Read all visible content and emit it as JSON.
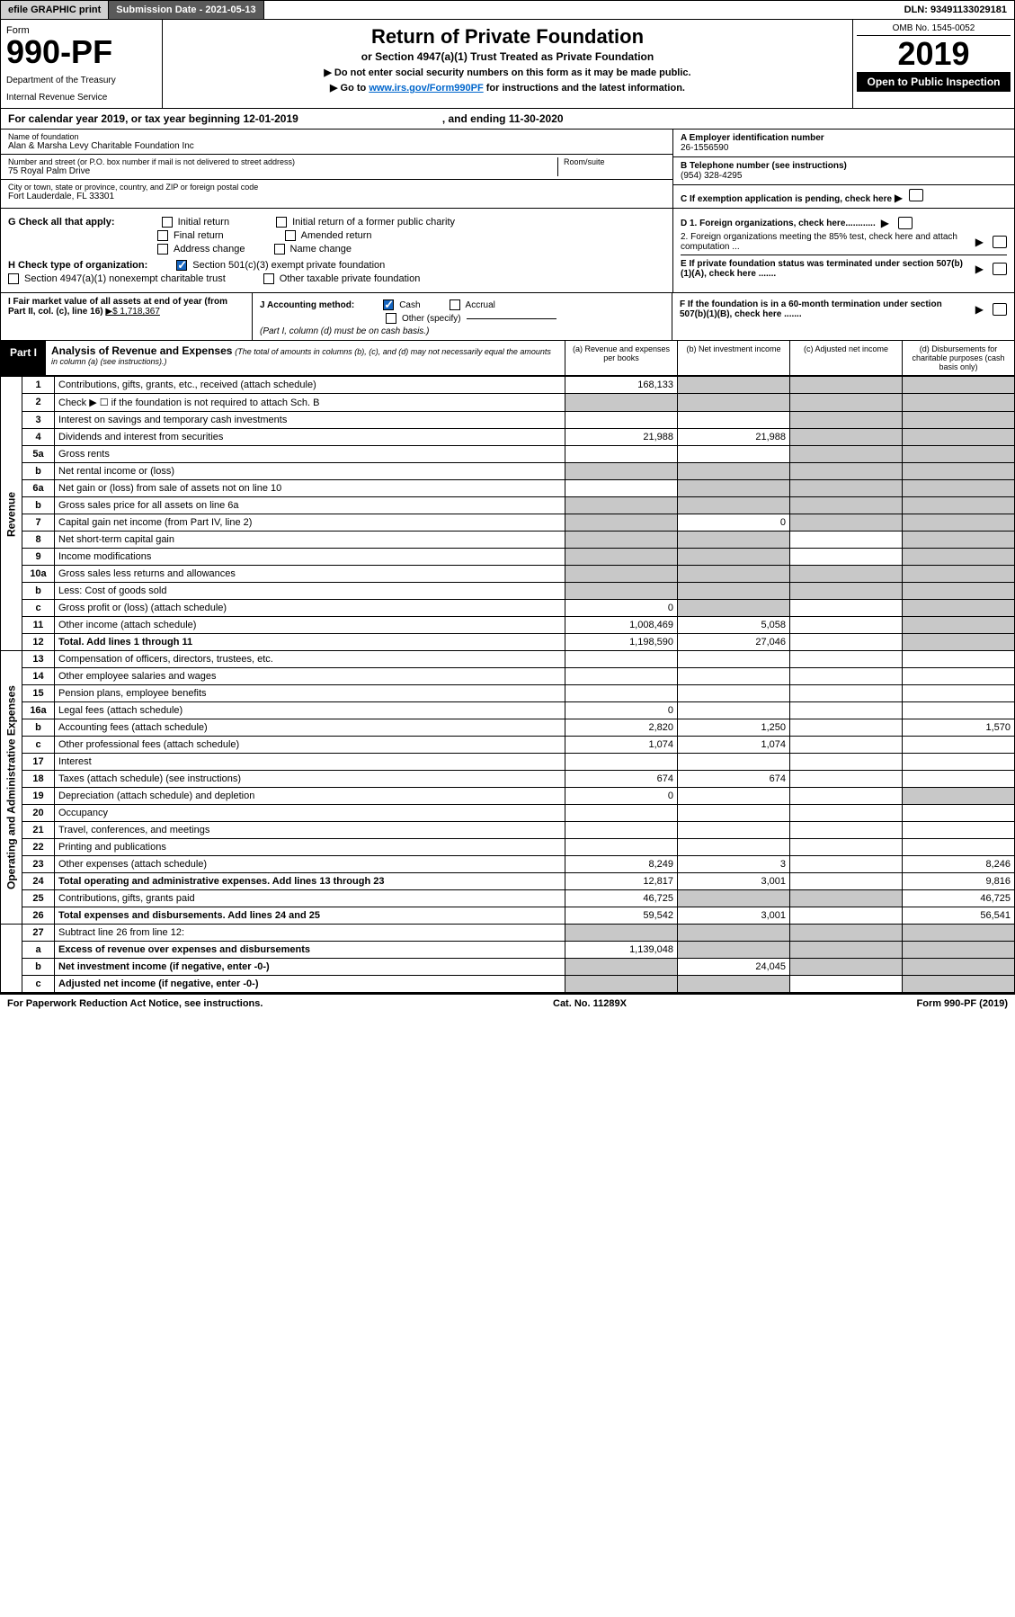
{
  "topbar": {
    "efile": "efile GRAPHIC print",
    "subdate_label": "Submission Date - ",
    "subdate": "2021-05-13",
    "dln": "DLN: 93491133029181"
  },
  "header": {
    "form_label": "Form",
    "form_number": "990-PF",
    "dept1": "Department of the Treasury",
    "dept2": "Internal Revenue Service",
    "title": "Return of Private Foundation",
    "subtitle": "or Section 4947(a)(1) Trust Treated as Private Foundation",
    "note1": "▶ Do not enter social security numbers on this form as it may be made public.",
    "note2a": "▶ Go to ",
    "note2_link": "www.irs.gov/Form990PF",
    "note2b": " for instructions and the latest information.",
    "omb": "OMB No. 1545-0052",
    "year": "2019",
    "open_public": "Open to Public Inspection"
  },
  "calyear": {
    "text": "For calendar year 2019, or tax year beginning 12-01-2019",
    "ending": ", and ending 11-30-2020"
  },
  "entity": {
    "name_label": "Name of foundation",
    "name": "Alan & Marsha Levy Charitable Foundation Inc",
    "addr_label": "Number and street (or P.O. box number if mail is not delivered to street address)",
    "addr": "75 Royal Palm Drive",
    "room_label": "Room/suite",
    "city_label": "City or town, state or province, country, and ZIP or foreign postal code",
    "city": "Fort Lauderdale, FL  33301",
    "ein_label": "A Employer identification number",
    "ein": "26-1556590",
    "phone_label": "B Telephone number (see instructions)",
    "phone": "(954) 328-4295",
    "c_label": "C If exemption application is pending, check here"
  },
  "checks": {
    "g_label": "G Check all that apply:",
    "g1": "Initial return",
    "g2": "Initial return of a former public charity",
    "g3": "Final return",
    "g4": "Amended return",
    "g5": "Address change",
    "g6": "Name change",
    "h_label": "H Check type of organization:",
    "h1": "Section 501(c)(3) exempt private foundation",
    "h2": "Section 4947(a)(1) nonexempt charitable trust",
    "h3": "Other taxable private foundation",
    "d1": "D 1. Foreign organizations, check here............",
    "d2": "2. Foreign organizations meeting the 85% test, check here and attach computation ...",
    "e": "E  If private foundation status was terminated under section 507(b)(1)(A), check here .......",
    "i_label": "I Fair market value of all assets at end of year (from Part II, col. (c), line 16)",
    "i_amt": "▶$  1,718,367",
    "j_label": "J Accounting method:",
    "j1": "Cash",
    "j2": "Accrual",
    "j3": "Other (specify)",
    "j_note": "(Part I, column (d) must be on cash basis.)",
    "f": "F  If the foundation is in a 60-month termination under section 507(b)(1)(B), check here ......."
  },
  "part": {
    "label": "Part I",
    "title": "Analysis of Revenue and Expenses",
    "sub": " (The total of amounts in columns (b), (c), and (d) may not necessarily equal the amounts in column (a) (see instructions).)",
    "col_a": "(a)   Revenue and expenses per books",
    "col_b": "(b)   Net investment income",
    "col_c": "(c)   Adjusted net income",
    "col_d": "(d)   Disbursements for charitable purposes (cash basis only)"
  },
  "sections": {
    "revenue": "Revenue",
    "opex": "Operating and Administrative Expenses"
  },
  "rows": {
    "r1": {
      "n": "1",
      "d": "Contributions, gifts, grants, etc., received (attach schedule)",
      "a": "168,133"
    },
    "r2": {
      "n": "2",
      "d": "Check ▶ ☐ if the foundation is not required to attach Sch. B"
    },
    "r3": {
      "n": "3",
      "d": "Interest on savings and temporary cash investments"
    },
    "r4": {
      "n": "4",
      "d": "Dividends and interest from securities",
      "a": "21,988",
      "b": "21,988"
    },
    "r5a": {
      "n": "5a",
      "d": "Gross rents"
    },
    "r5b": {
      "n": "b",
      "d": "Net rental income or (loss)"
    },
    "r6a": {
      "n": "6a",
      "d": "Net gain or (loss) from sale of assets not on line 10"
    },
    "r6b": {
      "n": "b",
      "d": "Gross sales price for all assets on line 6a"
    },
    "r7": {
      "n": "7",
      "d": "Capital gain net income (from Part IV, line 2)",
      "b": "0"
    },
    "r8": {
      "n": "8",
      "d": "Net short-term capital gain"
    },
    "r9": {
      "n": "9",
      "d": "Income modifications"
    },
    "r10a": {
      "n": "10a",
      "d": "Gross sales less returns and allowances"
    },
    "r10b": {
      "n": "b",
      "d": "Less: Cost of goods sold"
    },
    "r10c": {
      "n": "c",
      "d": "Gross profit or (loss) (attach schedule)",
      "a": "0"
    },
    "r11": {
      "n": "11",
      "d": "Other income (attach schedule)",
      "a": "1,008,469",
      "b": "5,058"
    },
    "r12": {
      "n": "12",
      "d": "Total. Add lines 1 through 11",
      "a": "1,198,590",
      "b": "27,046"
    },
    "r13": {
      "n": "13",
      "d": "Compensation of officers, directors, trustees, etc."
    },
    "r14": {
      "n": "14",
      "d": "Other employee salaries and wages"
    },
    "r15": {
      "n": "15",
      "d": "Pension plans, employee benefits"
    },
    "r16a": {
      "n": "16a",
      "d": "Legal fees (attach schedule)",
      "a": "0"
    },
    "r16b": {
      "n": "b",
      "d": "Accounting fees (attach schedule)",
      "a": "2,820",
      "b": "1,250",
      "dd": "1,570"
    },
    "r16c": {
      "n": "c",
      "d": "Other professional fees (attach schedule)",
      "a": "1,074",
      "b": "1,074"
    },
    "r17": {
      "n": "17",
      "d": "Interest"
    },
    "r18": {
      "n": "18",
      "d": "Taxes (attach schedule) (see instructions)",
      "a": "674",
      "b": "674"
    },
    "r19": {
      "n": "19",
      "d": "Depreciation (attach schedule) and depletion",
      "a": "0"
    },
    "r20": {
      "n": "20",
      "d": "Occupancy"
    },
    "r21": {
      "n": "21",
      "d": "Travel, conferences, and meetings"
    },
    "r22": {
      "n": "22",
      "d": "Printing and publications"
    },
    "r23": {
      "n": "23",
      "d": "Other expenses (attach schedule)",
      "a": "8,249",
      "b": "3",
      "dd": "8,246"
    },
    "r24": {
      "n": "24",
      "d": "Total operating and administrative expenses. Add lines 13 through 23",
      "a": "12,817",
      "b": "3,001",
      "dd": "9,816"
    },
    "r25": {
      "n": "25",
      "d": "Contributions, gifts, grants paid",
      "a": "46,725",
      "dd": "46,725"
    },
    "r26": {
      "n": "26",
      "d": "Total expenses and disbursements. Add lines 24 and 25",
      "a": "59,542",
      "b": "3,001",
      "dd": "56,541"
    },
    "r27": {
      "n": "27",
      "d": "Subtract line 26 from line 12:"
    },
    "r27a": {
      "n": "a",
      "d": "Excess of revenue over expenses and disbursements",
      "a": "1,139,048"
    },
    "r27b": {
      "n": "b",
      "d": "Net investment income (if negative, enter -0-)",
      "b": "24,045"
    },
    "r27c": {
      "n": "c",
      "d": "Adjusted net income (if negative, enter -0-)"
    }
  },
  "footer": {
    "left": "For Paperwork Reduction Act Notice, see instructions.",
    "mid": "Cat. No. 11289X",
    "right": "Form 990-PF (2019)"
  }
}
